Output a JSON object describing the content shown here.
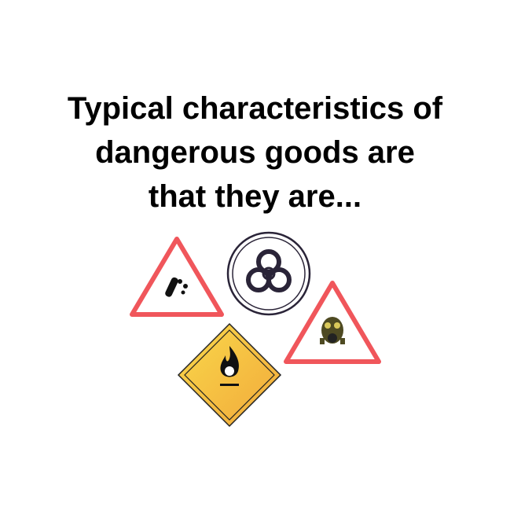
{
  "title": {
    "lines": [
      "Typical characteristics of",
      "dangerous goods are",
      "that they are..."
    ]
  },
  "signs": [
    {
      "name": "corrosive-warning-sign",
      "icon": "test-tube-corrosive-icon",
      "border_color": "#f0565b"
    },
    {
      "name": "biohazard-sign",
      "icon": "biohazard-icon",
      "border_color": "#2a2438"
    },
    {
      "name": "toxic-gas-warning-sign",
      "icon": "gas-mask-icon",
      "border_color": "#f0565b"
    },
    {
      "name": "flammable-sign",
      "icon": "flame-icon",
      "fill_color": "#f7c63a"
    }
  ]
}
